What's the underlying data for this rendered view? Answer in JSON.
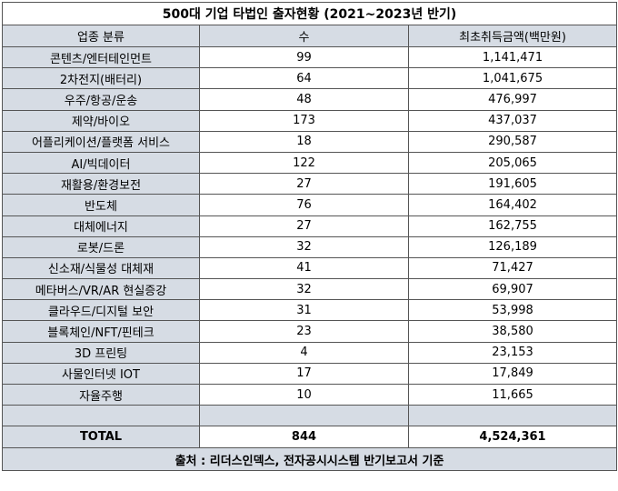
{
  "title": "500대 기업 타법인 출자현황 (2021~2023년 반기)",
  "headers": [
    "업종 분류",
    "수",
    "최초취득금액(백만원)"
  ],
  "rows": [
    {
      "category": "콘텐츠/엔터테인먼트",
      "count": "99",
      "amount": "1,141,471"
    },
    {
      "category": "2차전지(배터리)",
      "count": "64",
      "amount": "1,041,675"
    },
    {
      "category": "우주/항공/운송",
      "count": "48",
      "amount": "476,997"
    },
    {
      "category": "제약/바이오",
      "count": "173",
      "amount": "437,037"
    },
    {
      "category": "어플리케이션/플랫폼 서비스",
      "count": "18",
      "amount": "290,587"
    },
    {
      "category": "AI/빅데이터",
      "count": "122",
      "amount": "205,065"
    },
    {
      "category": "재활용/환경보전",
      "count": "27",
      "amount": "191,605"
    },
    {
      "category": "반도체",
      "count": "76",
      "amount": "164,402"
    },
    {
      "category": "대체에너지",
      "count": "27",
      "amount": "162,755"
    },
    {
      "category": "로봇/드론",
      "count": "32",
      "amount": "126,189"
    },
    {
      "category": "신소재/식물성 대체재",
      "count": "41",
      "amount": "71,427"
    },
    {
      "category": "메타버스/VR/AR 현실증강",
      "count": "32",
      "amount": "69,907"
    },
    {
      "category": "클라우드/디지털 보안",
      "count": "31",
      "amount": "53,998"
    },
    {
      "category": "블록체인/NFT/핀테크",
      "count": "23",
      "amount": "38,580"
    },
    {
      "category": "3D 프린팅",
      "count": "4",
      "amount": "23,153"
    },
    {
      "category": "사물인터넷 IOT",
      "count": "17",
      "amount": "17,849"
    },
    {
      "category": "자율주행",
      "count": "10",
      "amount": "11,665"
    }
  ],
  "total": {
    "label": "TOTAL",
    "count": "844",
    "amount": "4,524,361"
  },
  "source": "출처 : 리더스인덱스, 전자공시시스템 반기보고서 기준"
}
